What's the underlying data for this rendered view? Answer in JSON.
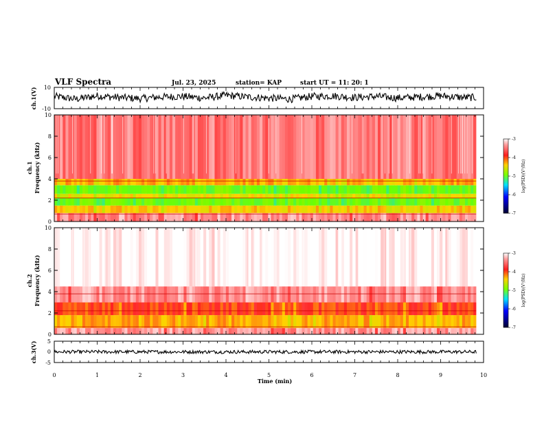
{
  "header": {
    "title": "VLF Spectra",
    "date": "Jul. 23, 2025",
    "station": "station= KAP",
    "start": "start UT = 11: 20: 1"
  },
  "colors": {
    "spectrogram_scale": [
      "#ffffff",
      "#ff8c8c",
      "#ff2a2a",
      "#ffd700",
      "#66ff00",
      "#00c8ff",
      "#0000ff",
      "#000040"
    ],
    "trace": "#000000"
  },
  "chart_data": [
    {
      "type": "line",
      "panel": "ch1-waveform",
      "ylabel": "ch.1(V)",
      "ylim": [
        -10,
        10
      ],
      "y_ticks": [
        "10",
        "-10"
      ],
      "x": [
        0,
        0.5,
        1,
        1.5,
        2,
        2.5,
        3,
        3.5,
        4,
        4.5,
        5,
        5.5,
        6,
        6.5,
        7,
        7.5,
        8,
        8.5,
        9,
        9.5,
        9.83
      ],
      "values": [
        1.5,
        -1,
        2,
        0.5,
        -0.5,
        1,
        1.5,
        0,
        2.5,
        1,
        0,
        -1,
        1.5,
        2,
        0.5,
        1.5,
        0,
        1,
        2,
        0.5,
        0.5
      ]
    },
    {
      "type": "heatmap",
      "panel": "ch1-spectrogram",
      "ylabel": "ch.1 Frequency (kHz)",
      "ylim": [
        0,
        10
      ],
      "y_ticks": [
        "0",
        "2",
        "4",
        "6",
        "8",
        "10"
      ],
      "bands": [
        {
          "f_khz": [
            0.0,
            0.8
          ],
          "level": -3.3
        },
        {
          "f_khz": [
            0.8,
            1.5
          ],
          "level": -4.2
        },
        {
          "f_khz": [
            1.5,
            2.2
          ],
          "level": -4.9
        },
        {
          "f_khz": [
            2.2,
            2.6
          ],
          "level": -4.3
        },
        {
          "f_khz": [
            2.6,
            3.4
          ],
          "level": -4.9
        },
        {
          "f_khz": [
            3.4,
            4.0
          ],
          "level": -4.1
        },
        {
          "f_khz": [
            4.0,
            10.0
          ],
          "level": -3.4
        }
      ],
      "colorbar": {
        "label": "log(PSD)(V²/Hz)",
        "ticks": [
          "-3",
          "-4",
          "-5",
          "-6",
          "-7"
        ],
        "range": [
          -7,
          -3
        ]
      }
    },
    {
      "type": "heatmap",
      "panel": "ch2-spectrogram",
      "ylabel": "ch.2 Frequency (kHz)",
      "ylim": [
        0,
        10
      ],
      "y_ticks": [
        "0",
        "2",
        "4",
        "6",
        "8",
        "10"
      ],
      "bands": [
        {
          "f_khz": [
            0.0,
            0.6
          ],
          "level": -3.3
        },
        {
          "f_khz": [
            0.6,
            1.8
          ],
          "level": -4.1
        },
        {
          "f_khz": [
            1.8,
            3.0
          ],
          "level": -3.8
        },
        {
          "f_khz": [
            3.0,
            4.5
          ],
          "level": -3.3
        },
        {
          "f_khz": [
            4.5,
            10.0
          ],
          "level": -3.0
        }
      ],
      "colorbar": {
        "label": "log(PSD)(V²/Hz)",
        "ticks": [
          "-3",
          "-4",
          "-5",
          "-6",
          "-7"
        ],
        "range": [
          -7,
          -3
        ]
      }
    },
    {
      "type": "line",
      "panel": "ch3-waveform",
      "ylabel": "ch.3(V)",
      "ylim": [
        -5,
        5
      ],
      "y_ticks": [
        "5",
        "0",
        "-5"
      ],
      "x": [
        0,
        9.83
      ],
      "values": [
        0,
        0
      ]
    }
  ],
  "x_axis": {
    "label": "Time (min)",
    "ticks": [
      "0",
      "1",
      "2",
      "3",
      "4",
      "5",
      "6",
      "7",
      "8",
      "9",
      "10"
    ],
    "xlim": [
      0,
      10
    ]
  }
}
